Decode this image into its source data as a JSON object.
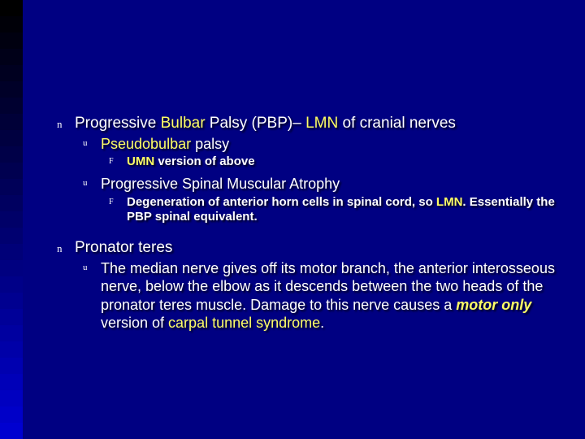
{
  "colors": {
    "bg_main": "#000082",
    "left_stripe_colors": [
      "#000000",
      "#000008",
      "#000010",
      "#000018",
      "#000020",
      "#000028",
      "#000030",
      "#000038",
      "#000040",
      "#000048",
      "#000050",
      "#000058",
      "#000060",
      "#000068",
      "#000070",
      "#000078",
      "#000080",
      "#000088",
      "#000090",
      "#000098",
      "#0000a0",
      "#0000a8",
      "#0000b0",
      "#0000b8",
      "#0000c0",
      "#0000c8",
      "#0000d0"
    ],
    "text": "#ffffff",
    "highlight": "#ffff66"
  },
  "bullets": {
    "b1": {
      "mark": "n",
      "pre": "Progressive ",
      "hl1": "Bulbar",
      "mid": " Palsy (PBP)– ",
      "hl2": "LMN",
      "post": " of cranial nerves"
    },
    "b1_1": {
      "mark": "u",
      "hl": "Pseudobulbar",
      "post": " palsy"
    },
    "b1_1_1": {
      "mark": "F",
      "pre": "",
      "hl": "UMN",
      "post": " version of above"
    },
    "b1_2": {
      "mark": "u",
      "text": "Progressive Spinal Muscular Atrophy"
    },
    "b1_2_1": {
      "mark": "F",
      "pre": "Degeneration of anterior horn cells in spinal cord, so ",
      "hl": "LMN",
      "post": ". Essentially the PBP spinal equivalent."
    },
    "b2": {
      "mark": "n",
      "text": "Pronator teres"
    },
    "b2_1": {
      "mark": "u",
      "pre": "The median nerve gives off its motor branch, the anterior interosseous nerve, below the elbow as it descends between the two heads of the pronator teres muscle. Damage to this nerve causes a ",
      "em": "motor only",
      "mid": " version of ",
      "hl": "carpal tunnel syndrome",
      "post": "."
    }
  }
}
